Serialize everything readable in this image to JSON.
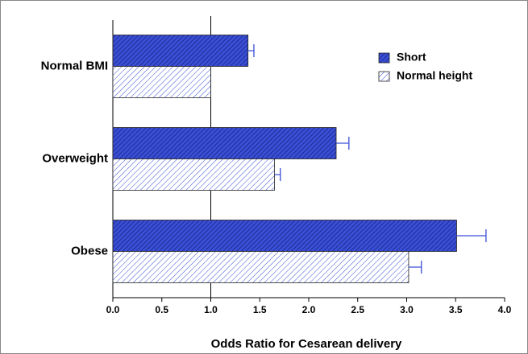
{
  "chart_data": {
    "type": "hbar",
    "x_label": "Odds Ratio for Cesarean delivery",
    "categories": [
      "Normal BMI",
      "Overweight",
      "Obese"
    ],
    "series": [
      {
        "name": "Short",
        "color": "#3a4fd6",
        "values": [
          1.38,
          2.28,
          3.51
        ],
        "errors": [
          0.06,
          0.13,
          0.3
        ]
      },
      {
        "name": "Normal height",
        "color": "#3a4fd6",
        "values": [
          1.0,
          1.65,
          3.02
        ],
        "errors": [
          null,
          0.06,
          0.13
        ]
      }
    ],
    "xlim": [
      0,
      4
    ],
    "xticks": [
      {
        "value": 0,
        "label": "0.0"
      },
      0.5,
      {
        "value": 1,
        "label": "1.0"
      },
      1.5,
      {
        "value": 2,
        "label": "2.0"
      },
      2.5,
      {
        "value": 3,
        "label": "3.0"
      },
      3.5,
      {
        "value": 4,
        "label": "4.0"
      }
    ],
    "reference_line": 1,
    "legend": "top-right"
  }
}
